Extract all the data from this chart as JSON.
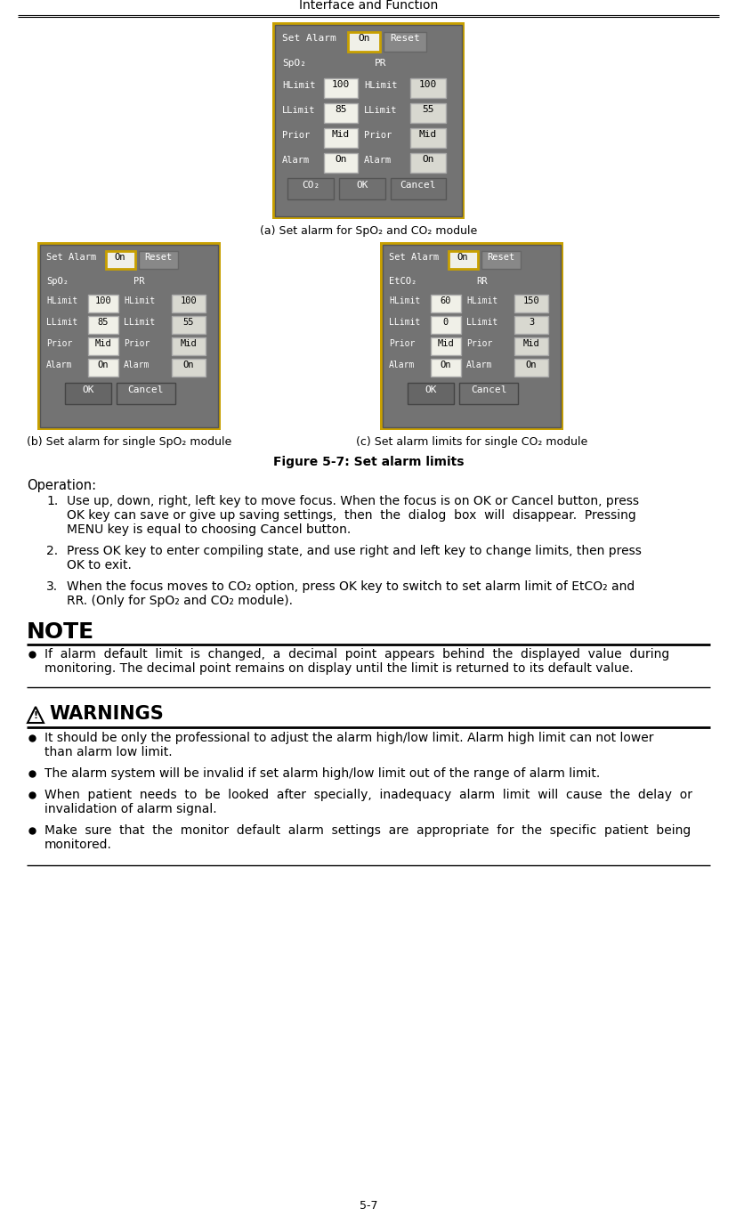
{
  "page_title": "Interface and Function",
  "page_number": "5-7",
  "bg_color": "#ffffff",
  "fig_a_caption": "(a) Set alarm for SpO₂ and CO₂ module",
  "fig_b_caption": "(b) Set alarm for single SpO₂ module",
  "fig_c_caption": "(c) Set alarm limits for single CO₂ module",
  "figure_title": "Figure 5-7: Set alarm limits",
  "panel_bg": "#737373",
  "panel_border_color": "#c8a000",
  "btn_white": "#f0f0e8",
  "btn_gray": "#999999",
  "btn_dark": "#666666",
  "operation_header": "Operation:",
  "op1": "Use up, down, right, left key to move focus. When the focus is on OK or Cancel button, press OK key can save or give up saving settings,  then  the  dialog  box  will  disappear.  Pressing MENU key is equal to choosing Cancel button.",
  "op2": "Press OK key to enter compiling state, and use right and left key to change limits, then press OK to exit.",
  "op3_a": "When the focus moves to CO₂ option, press OK key to switch to set alarm limit of EtCO₂ and",
  "op3_b": "RR. (Only for SpO₂ and CO₂ module).",
  "note_header": "NOTE",
  "note1_a": "If  alarm  default  limit  is  changed,  a  decimal  point  appears  behind  the  displayed  value  during",
  "note1_b": "monitoring. The decimal point remains on display until the limit is returned to its default value.",
  "warn_header": "WARNINGS",
  "warn1_a": "It should be only the professional to adjust the alarm high/low limit. Alarm high limit can not lower",
  "warn1_b": "than alarm low limit.",
  "warn2": "The alarm system will be invalid if set alarm high/low limit out of the range of alarm limit.",
  "warn3_a": "When  patient  needs  to  be  looked  after  specially,  inadequacy  alarm  limit  will  cause  the  delay  or",
  "warn3_b": "invalidation of alarm signal.",
  "warn4_a": "Make  sure  that  the  monitor  default  alarm  settings  are  appropriate  for  the  specific  patient  being",
  "warn4_b": "monitored."
}
